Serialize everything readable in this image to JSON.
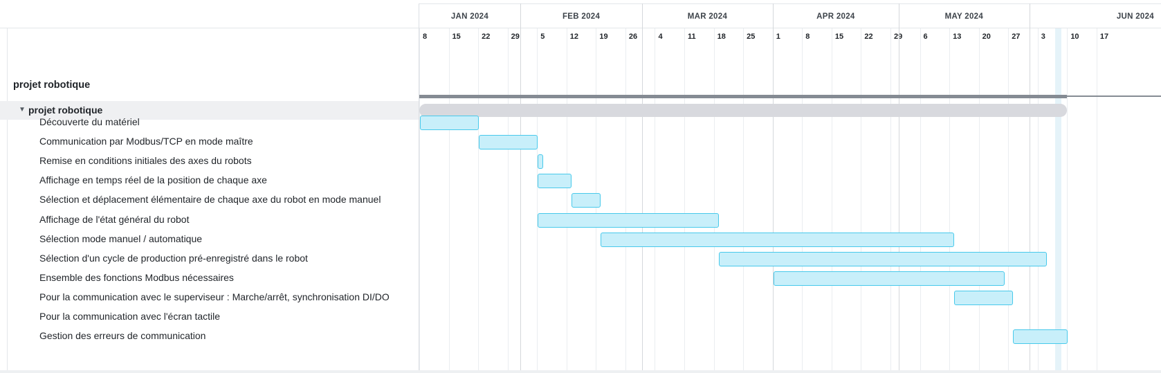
{
  "project_title": "projet robotique",
  "group": {
    "label": "projet robotique",
    "toggle": "▼"
  },
  "timeline": {
    "months": [
      "JAN 2024",
      "FEB 2024",
      "MAR 2024",
      "APR 2024",
      "MAY 2024",
      "JUN 2024"
    ],
    "days": [
      "8",
      "15",
      "22",
      "29",
      "5",
      "12",
      "19",
      "26",
      "4",
      "11",
      "18",
      "25",
      "1",
      "8",
      "15",
      "22",
      "29",
      "6",
      "13",
      "20",
      "27",
      "3",
      "10",
      "17"
    ]
  },
  "tasks": [
    {
      "label": "Découverte du matériel",
      "start": "2024-01-08",
      "end": "2024-01-22"
    },
    {
      "label": "Communication par Modbus/TCP en mode maître",
      "start": "2024-01-22",
      "end": "2024-02-05"
    },
    {
      "label": "Remise en conditions initiales des axes du robots",
      "start": "2024-02-05",
      "end": "2024-02-06"
    },
    {
      "label": "Affichage en temps réel de la position de chaque axe",
      "start": "2024-02-05",
      "end": "2024-02-13"
    },
    {
      "label": "Sélection et déplacement élémentaire de chaque axe du robot en mode manuel",
      "start": "2024-02-13",
      "end": "2024-02-20"
    },
    {
      "label": "Affichage de l'état général du robot",
      "start": "2024-02-05",
      "end": "2024-03-19"
    },
    {
      "label": "Sélection mode manuel / automatique",
      "start": "2024-02-20",
      "end": "2024-05-14"
    },
    {
      "label": "Sélection d'un cycle de production pré-enregistré dans le robot",
      "start": "2024-03-19",
      "end": "2024-06-05"
    },
    {
      "label": "Ensemble des fonctions Modbus nécessaires",
      "start": "2024-04-01",
      "end": "2024-05-26"
    },
    {
      "label": "Pour la communication avec le superviseur : Marche/arrêt, synchronisation DI/DO",
      "start": "2024-05-14",
      "end": "2024-05-28"
    },
    {
      "label": "Pour la communication avec l'écran tactile",
      "start": "",
      "end": ""
    },
    {
      "label": "Gestion des erreurs de communication",
      "start": "2024-05-28",
      "end": "2024-06-10"
    }
  ],
  "group_span": {
    "start": "2024-01-08",
    "end": "2024-06-10"
  },
  "today": "2024-06-07",
  "colors": {
    "task_fill": "#c8effa",
    "task_border": "#47c9eb",
    "group_bar": "#d8d9de",
    "project_line": "#858b93",
    "today_column": "#e5f3f9"
  }
}
